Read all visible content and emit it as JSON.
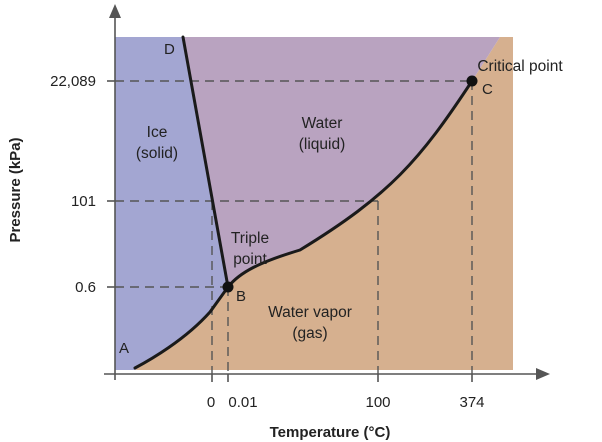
{
  "colors": {
    "solid": "#a3a6d2",
    "liquid": "#b9a3c0",
    "gas": "#d6b08f",
    "curve": "#1a1a1a",
    "dash": "#555555",
    "axis": "#555555"
  },
  "axes": {
    "x_title": "Temperature (°C)",
    "y_title": "Pressure (kPa)",
    "x_ticks": [
      "0",
      "0.01",
      "100",
      "374"
    ],
    "y_ticks": [
      "22,089",
      "101",
      "0.6"
    ]
  },
  "regions": {
    "solid_line1": "Ice",
    "solid_line2": "(solid)",
    "liquid_line1": "Water",
    "liquid_line2": "(liquid)",
    "gas_line1": "Water vapor",
    "gas_line2": "(gas)"
  },
  "points": {
    "a": "A",
    "b": "B",
    "c": "C",
    "d": "D",
    "triple_line1": "Triple",
    "triple_line2": "point",
    "critical": "Critical point"
  }
}
